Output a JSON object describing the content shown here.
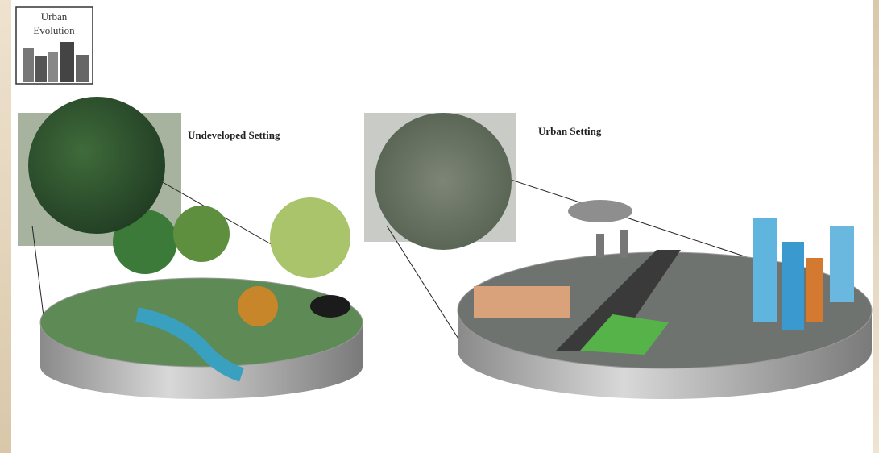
{
  "logo": {
    "lines": [
      "Urban",
      "Evolution"
    ]
  },
  "panels": [
    {
      "label": "Undeveloped Setting"
    },
    {
      "label": "Urban Setting"
    }
  ]
}
